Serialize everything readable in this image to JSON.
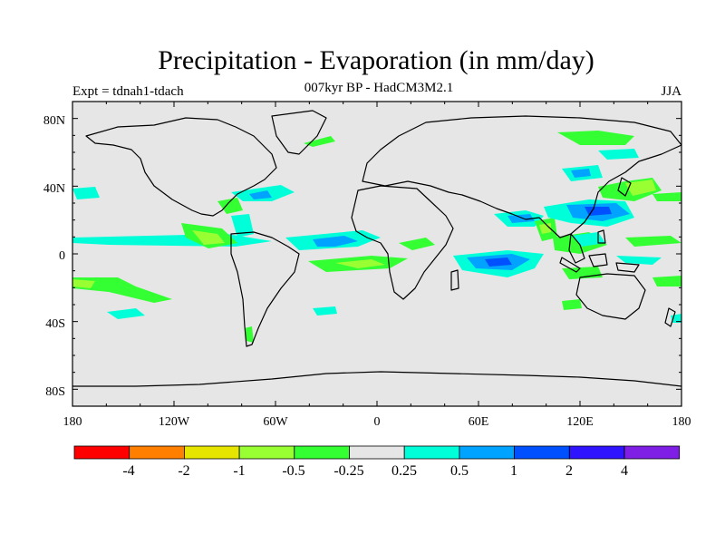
{
  "title": "Precipitation - Evaporation (in mm/day)",
  "subtitle": "007kyr BP - HadCM3M2.1",
  "experiment_label": "Expt = tdnah1-tdach",
  "season_label": "JJA",
  "y_axis_ticks": [
    "80N",
    "40N",
    "0",
    "40S",
    "80S"
  ],
  "x_axis_ticks": [
    "180",
    "120W",
    "60W",
    "0",
    "60E",
    "120E",
    "180"
  ],
  "colorbar": {
    "colors": [
      "#ff0000",
      "#ff7f00",
      "#e5e500",
      "#99ff33",
      "#33ff33",
      "#e6e6e6",
      "#00ffd9",
      "#00a3ff",
      "#0050ff",
      "#2f14ff",
      "#7f1fe6"
    ],
    "labels": [
      "-4",
      "-2",
      "-1",
      "-0.5",
      "-0.25",
      "0.25",
      "0.5",
      "1",
      "2",
      "4"
    ]
  },
  "map": {
    "background": "#e6e6e6",
    "colors": {
      "green": "#33ff33",
      "lightgreen": "#99ff33",
      "cyan": "#00ffd9",
      "lightblue": "#00a3ff",
      "blue": "#0050ff"
    }
  }
}
